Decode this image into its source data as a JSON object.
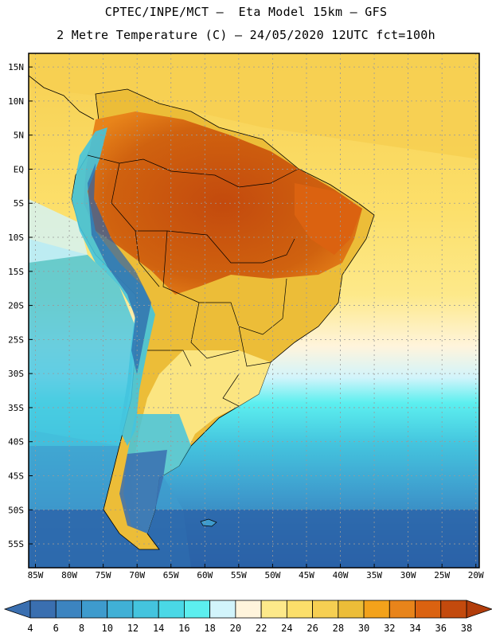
{
  "title": {
    "line1": "CPTEC/INPE/MCT –  Eta Model 15km – GFS",
    "line2": "2 Metre Temperature (C) – 24/05/2020 12UTC fct=100h"
  },
  "axes": {
    "lat_labels": [
      "15N",
      "10N",
      "5N",
      "EQ",
      "5S",
      "10S",
      "15S",
      "20S",
      "25S",
      "30S",
      "35S",
      "40S",
      "45S",
      "50S",
      "55S"
    ],
    "lon_labels": [
      "85W",
      "80W",
      "75W",
      "70W",
      "65W",
      "60W",
      "55W",
      "50W",
      "45W",
      "40W",
      "35W",
      "30W",
      "25W",
      "20W"
    ]
  },
  "colorbar": {
    "labels": [
      "4",
      "6",
      "8",
      "10",
      "12",
      "14",
      "16",
      "18",
      "20",
      "22",
      "24",
      "26",
      "28",
      "30",
      "32",
      "34",
      "36",
      "38"
    ],
    "colors": [
      "#3a6fb0",
      "#3c84c0",
      "#3e9bcd",
      "#40b0d6",
      "#44c4de",
      "#4ad8e6",
      "#5cefef",
      "#d2f4fb",
      "#fff4dc",
      "#fde98a",
      "#fcdf6a",
      "#f6cf52",
      "#ecbd38",
      "#f3a21b",
      "#e8841a",
      "#db6210",
      "#c34a0d"
    ],
    "low_color": "#3a6fb0",
    "high_color": "#b23d0b"
  },
  "colors": {
    "ocean_cold": "#2b62a8",
    "ocean_cool": "#44c0dc",
    "ocean_mild": "#5cefef",
    "ocean_warm": "#f6cf52",
    "ocean_hot": "#fcdf6a",
    "land_hot": "#c95a12",
    "land_warm": "#ecbd38",
    "andes": "#44c4de",
    "border": "#000000",
    "grid": "#9a9a9a"
  }
}
